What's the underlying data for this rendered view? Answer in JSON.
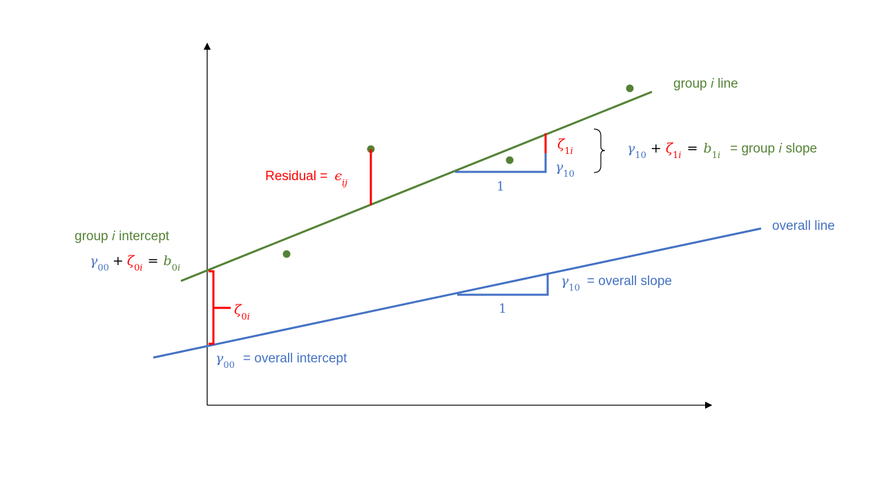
{
  "group_line_label": "group 𝑖 line",
  "group_slope": {
    "gamma": "γ",
    "gamma_sub": "10",
    "plus": "+",
    "zeta": "ζ",
    "zeta_sub": "1𝑖",
    "equals": "=",
    "b": "𝑏",
    "b_sub": "1𝑖",
    "label": "= group 𝑖 slope"
  },
  "zeta_1i": {
    "symbol": "ζ",
    "sub": "1𝑖"
  },
  "gamma_10_group": {
    "symbol": "γ",
    "sub": "10"
  },
  "group_run": "1",
  "residual": {
    "label": "Residual =",
    "symbol": "ϵ",
    "sub": "𝑖𝑗"
  },
  "group_intercept": {
    "label": "group 𝑖 intercept",
    "gamma": "γ",
    "gamma_sub": "00",
    "plus": "+",
    "zeta": "ζ",
    "zeta_sub": "0𝑖",
    "equals": "=",
    "b": "𝑏",
    "b_sub": "0𝑖"
  },
  "zeta_0i": {
    "symbol": "ζ",
    "sub": "0𝑖"
  },
  "overall_line_label": "overall line",
  "overall_slope": {
    "symbol": "γ",
    "sub": "10",
    "label": "= overall slope"
  },
  "overall_run": "1",
  "overall_intercept": {
    "symbol": "γ",
    "sub": "00",
    "label": "= overall intercept"
  }
}
